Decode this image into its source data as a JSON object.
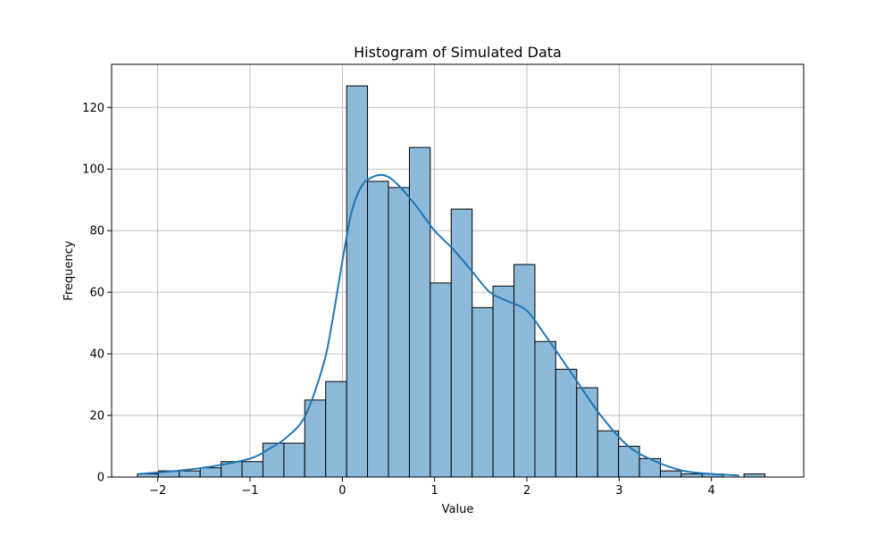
{
  "chart_data": {
    "type": "bar",
    "subtype": "histogram_with_kde",
    "title": "Histogram of Simulated Data",
    "xlabel": "Value",
    "ylabel": "Frequency",
    "xlim": [
      -2.5,
      5.0
    ],
    "ylim": [
      0,
      134
    ],
    "xticks": [
      -2,
      -1,
      0,
      1,
      2,
      3,
      4
    ],
    "xtick_labels": [
      "−2",
      "−1",
      "0",
      "1",
      "2",
      "3",
      "4"
    ],
    "yticks": [
      0,
      20,
      40,
      60,
      80,
      100,
      120
    ],
    "ytick_labels": [
      "0",
      "20",
      "40",
      "60",
      "80",
      "100",
      "120"
    ],
    "grid": true,
    "bins": {
      "edges": [
        -2.22,
        -1.993,
        -1.767,
        -1.54,
        -1.313,
        -1.087,
        -0.86,
        -0.633,
        -0.407,
        -0.18,
        0.047,
        0.273,
        0.5,
        0.727,
        0.953,
        1.18,
        1.407,
        1.633,
        1.86,
        2.087,
        2.313,
        2.54,
        2.767,
        2.993,
        3.22,
        3.447,
        3.673,
        3.9,
        4.127,
        4.353,
        4.58
      ],
      "counts": [
        1,
        2,
        2,
        3,
        5,
        5,
        11,
        11,
        25,
        31,
        127,
        96,
        94,
        107,
        63,
        87,
        55,
        62,
        69,
        44,
        35,
        29,
        15,
        10,
        6,
        2,
        1,
        1,
        0,
        1
      ]
    },
    "kde": {
      "x": [
        -2.2,
        -1.8,
        -1.4,
        -1.0,
        -0.8,
        -0.6,
        -0.4,
        -0.2,
        -0.1,
        0.0,
        0.1,
        0.2,
        0.3,
        0.45,
        0.6,
        0.8,
        1.0,
        1.2,
        1.4,
        1.6,
        1.8,
        2.0,
        2.2,
        2.5,
        2.8,
        3.1,
        3.4,
        3.7,
        4.0,
        4.3
      ],
      "y": [
        1,
        2,
        3.5,
        6,
        9,
        13,
        20,
        37,
        52,
        70,
        86,
        94,
        97,
        98,
        95,
        88,
        80,
        74,
        67,
        60,
        57,
        54,
        46,
        33,
        20,
        10,
        5,
        2,
        1,
        0.5
      ]
    },
    "colors": {
      "bar_fill": "#8db9da",
      "bar_edge": "#000000",
      "kde_line": "#1f77b4",
      "grid": "#b0b0b0"
    }
  }
}
